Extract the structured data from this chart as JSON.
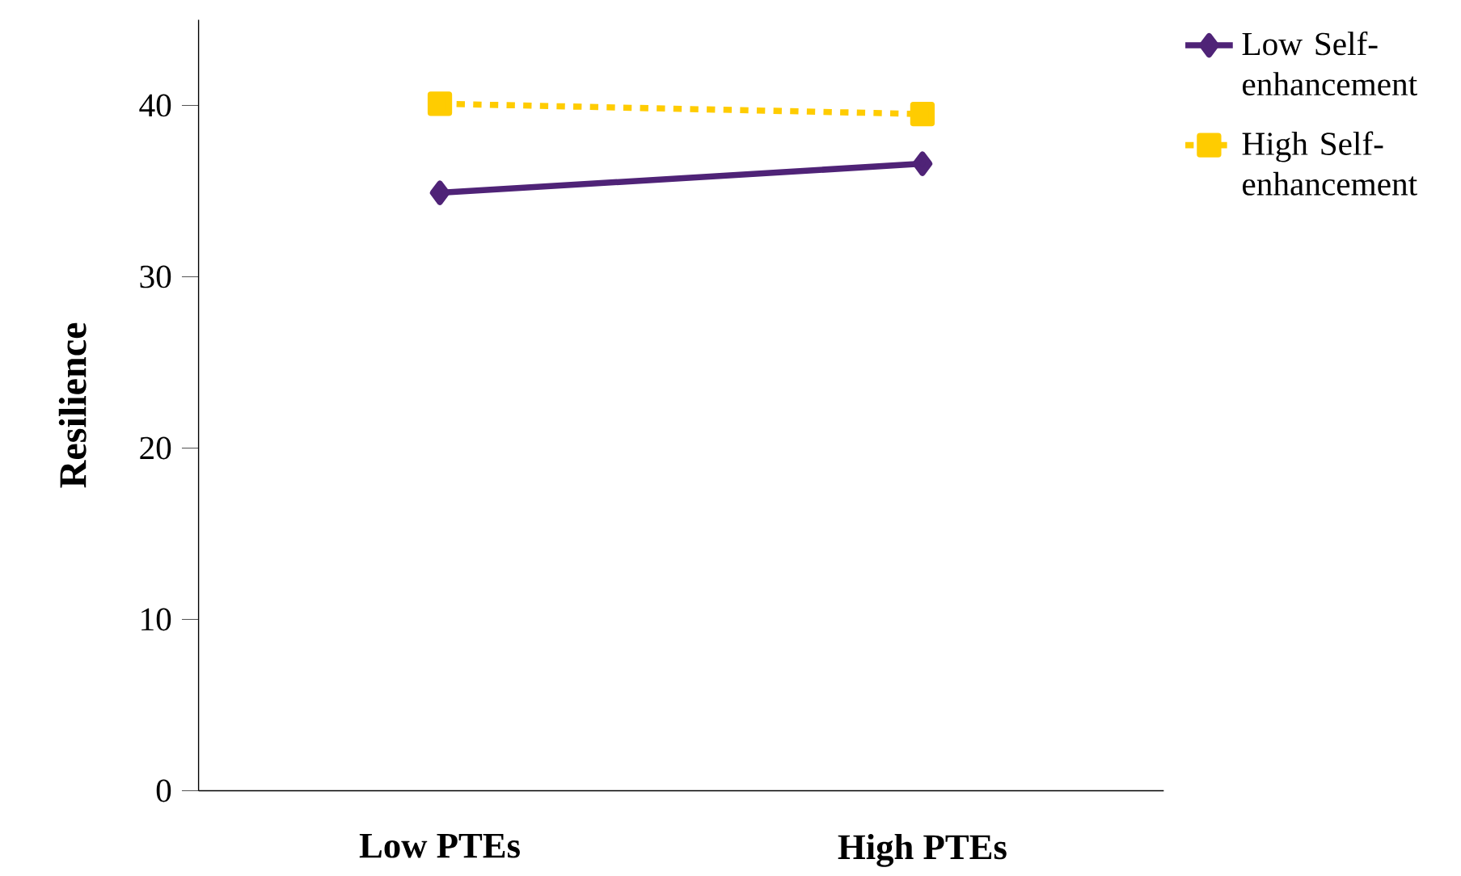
{
  "chart_data": {
    "type": "line",
    "ylabel": "Resilience",
    "categories": [
      "Low PTEs",
      "High PTEs"
    ],
    "series": [
      {
        "name": "Low Self-enhancement",
        "color": "#4f2377",
        "values": [
          34.9,
          36.6
        ],
        "marker": "diamond",
        "line_style": "solid"
      },
      {
        "name": "High Self-enhancement",
        "color": "#ffcc00",
        "values": [
          40.1,
          39.5
        ],
        "marker": "square",
        "line_style": "dashed"
      }
    ],
    "ylim": [
      0,
      45
    ],
    "yticks": [
      0,
      10,
      20,
      30,
      40
    ],
    "legend": "right"
  }
}
